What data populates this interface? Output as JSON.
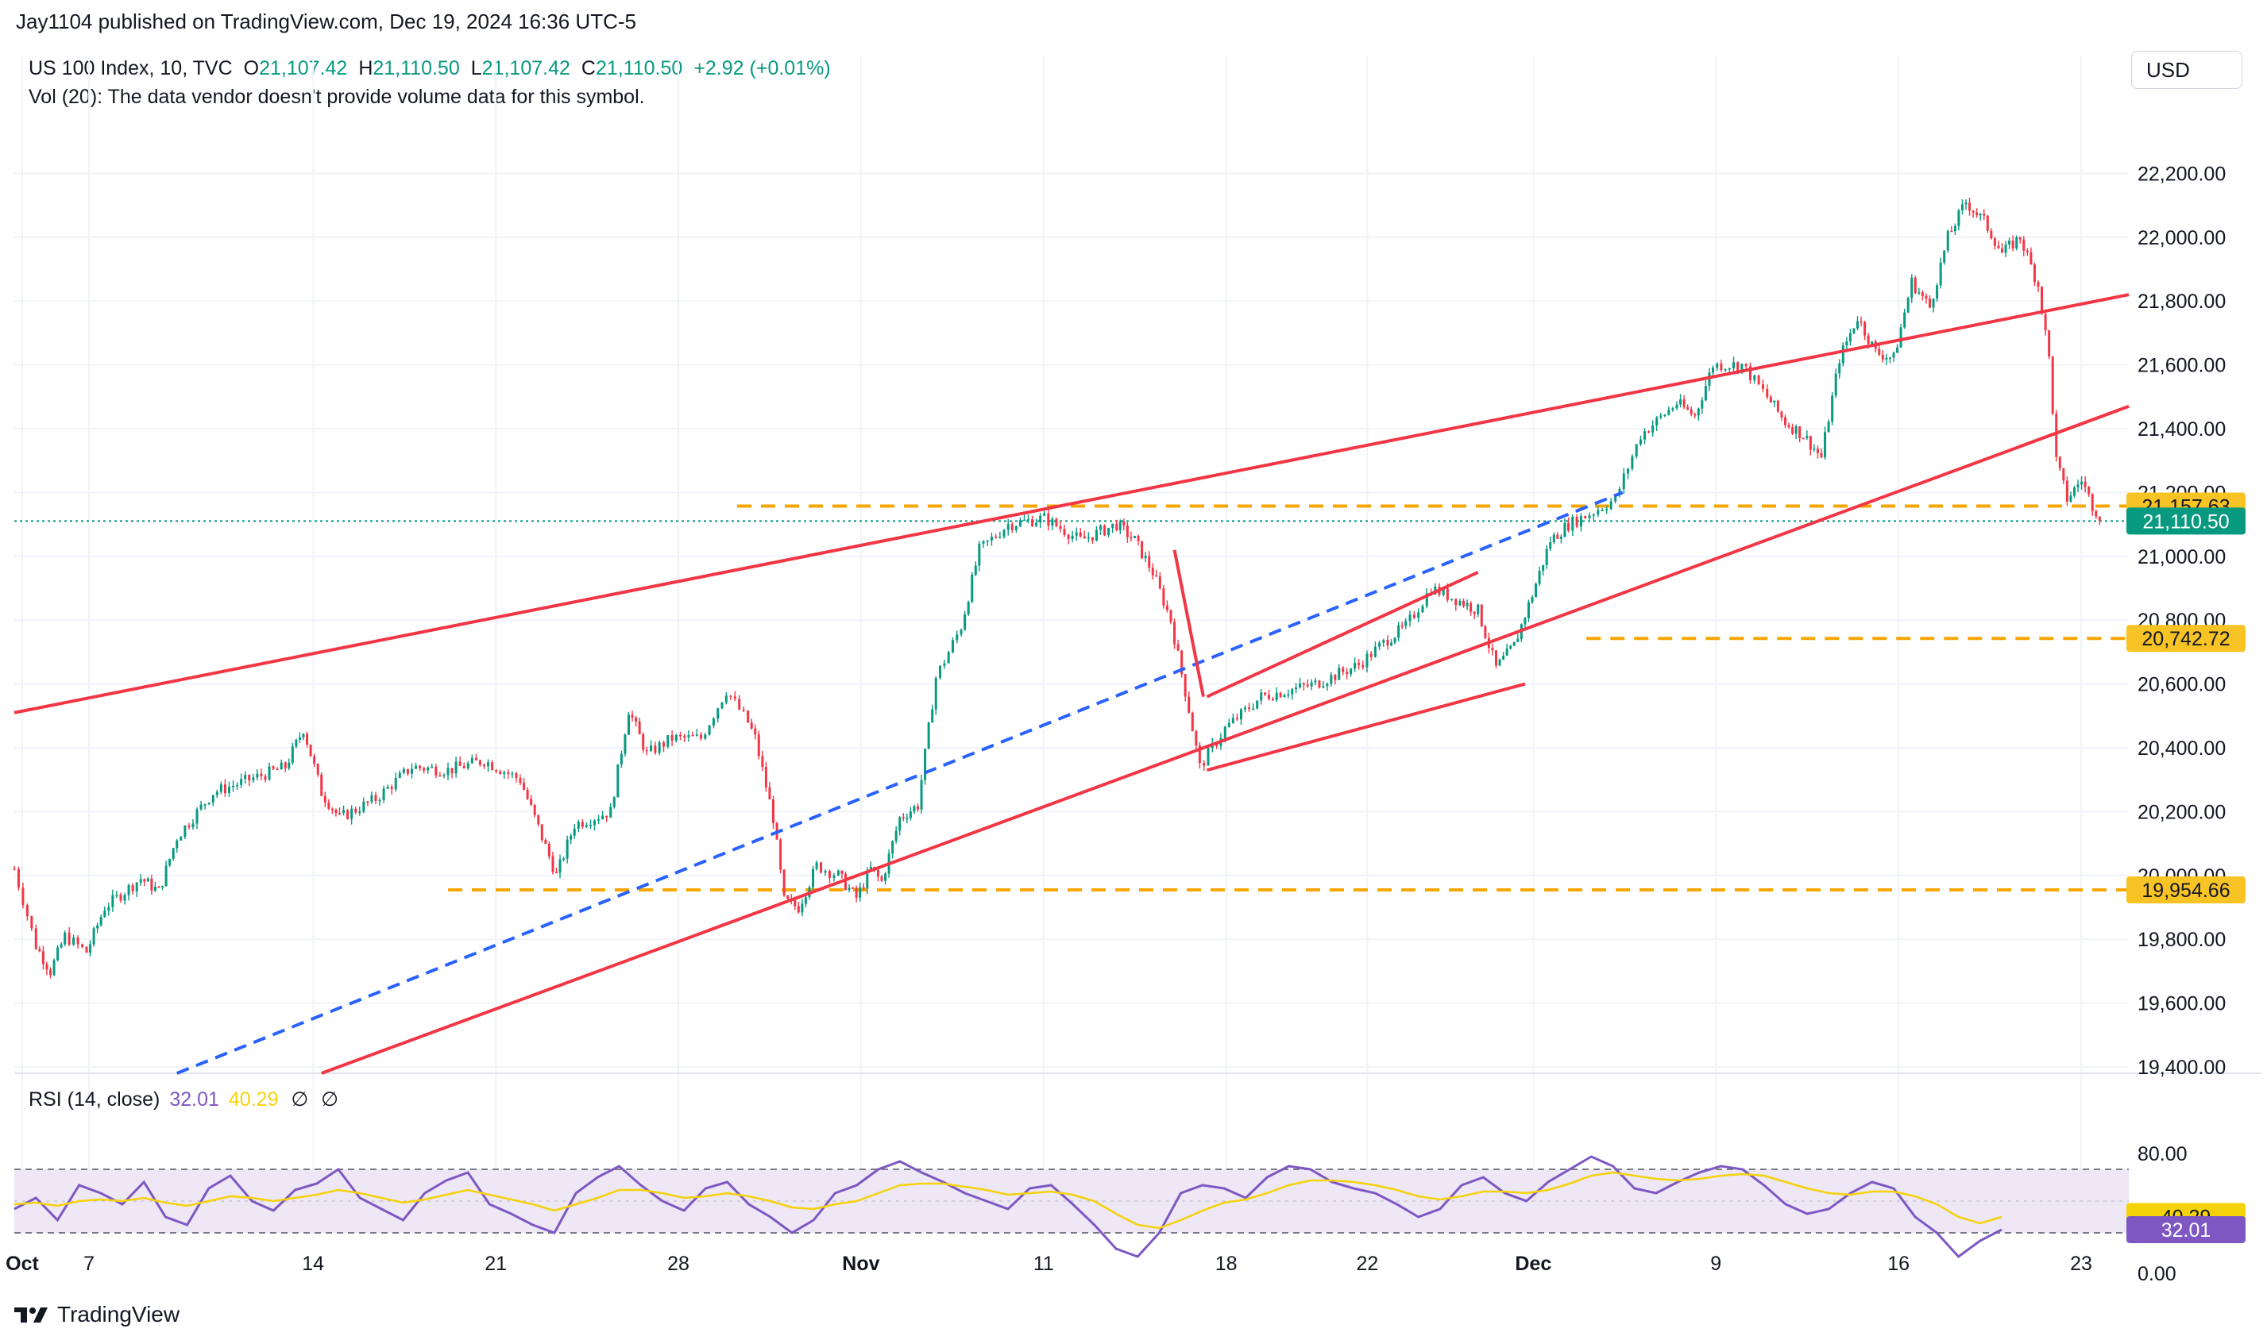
{
  "header": {
    "published_by": "Jay1104 published on TradingView.com, Dec 19, 2024 16:36 UTC-5"
  },
  "legend": {
    "symbol": "US 100 Index, 10, TVC",
    "open_label": "O",
    "open": "21,107.42",
    "high_label": "H",
    "high": "21,110.50",
    "low_label": "L",
    "low": "21,107.42",
    "close_label": "C",
    "close": "21,110.50",
    "change": "+2.92 (+0.01%)",
    "volume_note": "Vol (20): The data vendor doesn't provide volume data for this symbol."
  },
  "currency": "USD",
  "rsi_legend": {
    "label": "RSI (14, close)",
    "rsi_value": "32.01",
    "ma_value": "40.29",
    "icon1": "∅",
    "icon2": "∅"
  },
  "footer": {
    "brand": "TradingView",
    "logo_icon": "tradingview-logo-icon"
  },
  "colors": {
    "up": "#089981",
    "down": "#f23645",
    "trendline": "#f23645",
    "dashed_support": "#f7a600",
    "dashed_trend": "#2962ff",
    "rsi_line": "#7e57c2",
    "rsi_ma": "#f5d20a",
    "rsi_band": "#ede7f6",
    "last_price_bg": "#089981",
    "level_label_bg": "#f7c325"
  },
  "chart_data": [
    {
      "type": "candlestick",
      "title": "US 100 Index, 10, TVC",
      "price_axis": [
        "22,200.00",
        "22,000.00",
        "21,800.00",
        "21,600.00",
        "21,400.00",
        "21,200.00",
        "21,000.00",
        "20,800.00",
        "20,600.00",
        "20,400.00",
        "20,200.00",
        "20,000.00",
        "19,800.00",
        "19,600.00",
        "19,400.00"
      ],
      "ylim": [
        19380,
        22420
      ],
      "time_axis": [
        "Oct",
        "7",
        "14",
        "21",
        "28",
        "Nov",
        "11",
        "18",
        "22",
        "Dec",
        "9",
        "16",
        "23"
      ],
      "last_price": "21,110.50",
      "price_labels": [
        "21,157.63",
        "20,742.72",
        "19,954.66"
      ],
      "horizontal_levels": [
        21157.63,
        20742.72,
        19954.66
      ],
      "grid": true,
      "approx_path": [
        {
          "x": 0,
          "y": 20020
        },
        {
          "x": 6,
          "y": 19780
        },
        {
          "x": 10,
          "y": 19700
        },
        {
          "x": 14,
          "y": 19810
        },
        {
          "x": 20,
          "y": 19760
        },
        {
          "x": 25,
          "y": 19900
        },
        {
          "x": 35,
          "y": 19990
        },
        {
          "x": 40,
          "y": 19950
        },
        {
          "x": 45,
          "y": 20120
        },
        {
          "x": 55,
          "y": 20260
        },
        {
          "x": 65,
          "y": 20300
        },
        {
          "x": 75,
          "y": 20340
        },
        {
          "x": 80,
          "y": 20460
        },
        {
          "x": 85,
          "y": 20260
        },
        {
          "x": 90,
          "y": 20180
        },
        {
          "x": 100,
          "y": 20240
        },
        {
          "x": 110,
          "y": 20340
        },
        {
          "x": 120,
          "y": 20330
        },
        {
          "x": 130,
          "y": 20360
        },
        {
          "x": 140,
          "y": 20300
        },
        {
          "x": 145,
          "y": 20150
        },
        {
          "x": 150,
          "y": 20000
        },
        {
          "x": 155,
          "y": 20160
        },
        {
          "x": 165,
          "y": 20200
        },
        {
          "x": 170,
          "y": 20520
        },
        {
          "x": 175,
          "y": 20380
        },
        {
          "x": 182,
          "y": 20430
        },
        {
          "x": 190,
          "y": 20430
        },
        {
          "x": 197,
          "y": 20580
        },
        {
          "x": 203,
          "y": 20480
        },
        {
          "x": 205,
          "y": 20430
        },
        {
          "x": 210,
          "y": 20180
        },
        {
          "x": 213,
          "y": 19920
        },
        {
          "x": 217,
          "y": 19900
        },
        {
          "x": 222,
          "y": 20030
        },
        {
          "x": 228,
          "y": 20000
        },
        {
          "x": 233,
          "y": 19930
        },
        {
          "x": 237,
          "y": 20020
        },
        {
          "x": 240,
          "y": 19980
        },
        {
          "x": 245,
          "y": 20180
        },
        {
          "x": 250,
          "y": 20220
        },
        {
          "x": 255,
          "y": 20620
        },
        {
          "x": 262,
          "y": 20780
        },
        {
          "x": 267,
          "y": 21020
        },
        {
          "x": 275,
          "y": 21100
        },
        {
          "x": 285,
          "y": 21120
        },
        {
          "x": 295,
          "y": 21050
        },
        {
          "x": 305,
          "y": 21100
        },
        {
          "x": 310,
          "y": 21050
        },
        {
          "x": 315,
          "y": 20950
        },
        {
          "x": 320,
          "y": 20800
        },
        {
          "x": 325,
          "y": 20520
        },
        {
          "x": 328,
          "y": 20340
        },
        {
          "x": 335,
          "y": 20460
        },
        {
          "x": 345,
          "y": 20560
        },
        {
          "x": 360,
          "y": 20600
        },
        {
          "x": 372,
          "y": 20660
        },
        {
          "x": 380,
          "y": 20740
        },
        {
          "x": 385,
          "y": 20780
        },
        {
          "x": 392,
          "y": 20900
        },
        {
          "x": 400,
          "y": 20860
        },
        {
          "x": 405,
          "y": 20830
        },
        {
          "x": 410,
          "y": 20650
        },
        {
          "x": 415,
          "y": 20720
        },
        {
          "x": 420,
          "y": 20880
        },
        {
          "x": 425,
          "y": 21050
        },
        {
          "x": 430,
          "y": 21100
        },
        {
          "x": 437,
          "y": 21140
        },
        {
          "x": 443,
          "y": 21180
        },
        {
          "x": 450,
          "y": 21380
        },
        {
          "x": 460,
          "y": 21480
        },
        {
          "x": 465,
          "y": 21440
        },
        {
          "x": 470,
          "y": 21600
        },
        {
          "x": 478,
          "y": 21600
        },
        {
          "x": 485,
          "y": 21500
        },
        {
          "x": 490,
          "y": 21420
        },
        {
          "x": 495,
          "y": 21380
        },
        {
          "x": 500,
          "y": 21310
        },
        {
          "x": 505,
          "y": 21620
        },
        {
          "x": 510,
          "y": 21750
        },
        {
          "x": 515,
          "y": 21640
        },
        {
          "x": 520,
          "y": 21620
        },
        {
          "x": 525,
          "y": 21860
        },
        {
          "x": 530,
          "y": 21780
        },
        {
          "x": 535,
          "y": 22000
        },
        {
          "x": 540,
          "y": 22110
        },
        {
          "x": 545,
          "y": 22050
        },
        {
          "x": 550,
          "y": 21950
        },
        {
          "x": 555,
          "y": 22000
        },
        {
          "x": 560,
          "y": 21850
        },
        {
          "x": 563,
          "y": 21620
        },
        {
          "x": 565,
          "y": 21300
        },
        {
          "x": 568,
          "y": 21180
        },
        {
          "x": 572,
          "y": 21240
        },
        {
          "x": 575,
          "y": 21160
        },
        {
          "x": 578,
          "y": 21110
        }
      ],
      "trendlines": [
        {
          "style": "solid",
          "from": {
            "x": 0,
            "y": 20510
          },
          "to": {
            "x": 600,
            "y": 21820
          }
        },
        {
          "style": "solid",
          "from": {
            "x": 85,
            "y": 19380
          },
          "to": {
            "x": 600,
            "y": 21470
          }
        },
        {
          "style": "dashed",
          "from": {
            "x": 45,
            "y": 19380
          },
          "to": {
            "x": 445,
            "y": 21200
          }
        },
        {
          "style": "solid",
          "from": {
            "x": 330,
            "y": 20560
          },
          "to": {
            "x": 405,
            "y": 20950
          }
        },
        {
          "style": "solid",
          "from": {
            "x": 330,
            "y": 20330
          },
          "to": {
            "x": 418,
            "y": 20600
          }
        },
        {
          "style": "solid",
          "from": {
            "x": 321,
            "y": 21020
          },
          "to": {
            "x": 329,
            "y": 20560
          }
        }
      ]
    },
    {
      "type": "line",
      "title": "RSI (14, close)",
      "y_axis": [
        "80.00",
        "0.00"
      ],
      "ylim": [
        0,
        100
      ],
      "bands": [
        70,
        30
      ],
      "rsi_last": "32.01",
      "ma_last": "40.29",
      "series": [
        {
          "name": "RSI",
          "values": [
            45,
            52,
            38,
            60,
            55,
            48,
            62,
            40,
            35,
            58,
            66,
            50,
            44,
            57,
            61,
            70,
            52,
            45,
            38,
            55,
            63,
            68,
            48,
            42,
            35,
            30,
            55,
            65,
            72,
            60,
            50,
            44,
            58,
            62,
            48,
            40,
            30,
            38,
            55,
            60,
            70,
            75,
            68,
            62,
            55,
            50,
            45,
            58,
            60,
            48,
            35,
            20,
            15,
            30,
            55,
            60,
            58,
            52,
            65,
            72,
            70,
            62,
            58,
            55,
            48,
            40,
            45,
            60,
            65,
            55,
            50,
            62,
            70,
            78,
            72,
            58,
            55,
            62,
            68,
            72,
            70,
            60,
            48,
            42,
            45,
            55,
            62,
            58,
            40,
            30,
            15,
            25,
            32
          ]
        },
        {
          "name": "MA",
          "values": [
            48,
            49,
            47,
            50,
            51,
            50,
            52,
            49,
            47,
            50,
            53,
            52,
            50,
            52,
            54,
            57,
            55,
            52,
            49,
            51,
            54,
            57,
            54,
            51,
            48,
            44,
            48,
            52,
            57,
            57,
            55,
            52,
            53,
            55,
            53,
            50,
            46,
            45,
            48,
            50,
            55,
            60,
            61,
            61,
            59,
            57,
            54,
            55,
            56,
            54,
            50,
            42,
            35,
            33,
            38,
            44,
            49,
            51,
            55,
            60,
            63,
            63,
            62,
            60,
            57,
            53,
            51,
            53,
            56,
            56,
            55,
            57,
            61,
            66,
            68,
            66,
            64,
            63,
            64,
            66,
            67,
            66,
            62,
            58,
            55,
            54,
            56,
            56,
            53,
            48,
            40,
            36,
            40
          ]
        }
      ]
    }
  ]
}
